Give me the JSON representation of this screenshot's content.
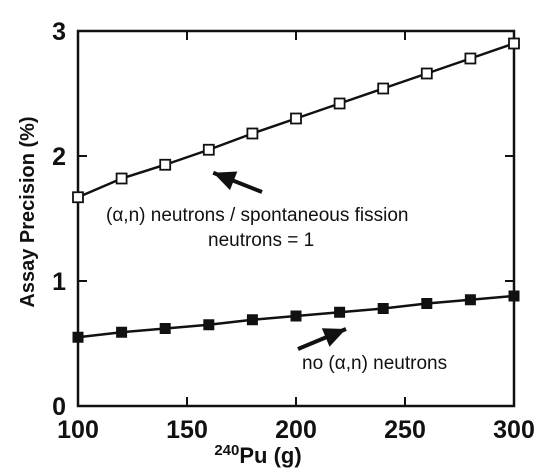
{
  "chart_data": {
    "type": "line",
    "title": "",
    "xlabel_sup": "240",
    "xlabel_main": "Pu (g)",
    "ylabel": "Assay Precision (%)",
    "xlim": [
      100,
      300
    ],
    "ylim": [
      0,
      3
    ],
    "x_ticks": [
      "100",
      "150",
      "200",
      "250",
      "300"
    ],
    "y_ticks": [
      "0",
      "1",
      "2",
      "3"
    ],
    "grid": false,
    "x": [
      100,
      120,
      140,
      160,
      180,
      200,
      220,
      240,
      260,
      280,
      300
    ],
    "series": [
      {
        "marker": "open-square",
        "values": [
          1.67,
          1.82,
          1.93,
          2.05,
          2.18,
          2.3,
          2.42,
          2.54,
          2.66,
          2.78,
          2.9
        ]
      },
      {
        "marker": "filled-square",
        "values": [
          0.55,
          0.59,
          0.62,
          0.65,
          0.69,
          0.72,
          0.75,
          0.78,
          0.82,
          0.85,
          0.88
        ]
      }
    ],
    "annotations": [
      {
        "lines": [
          "(α,n) neutrons / spontaneous fission",
          "neutrons = 1"
        ],
        "points_to_x": 140,
        "points_to_y": 1.93
      },
      {
        "lines": [
          "no (α,n) neutrons"
        ],
        "points_to_x": 200,
        "points_to_y": 0.72
      }
    ],
    "colors": {
      "line": "#111111",
      "background": "#ffffff"
    }
  }
}
